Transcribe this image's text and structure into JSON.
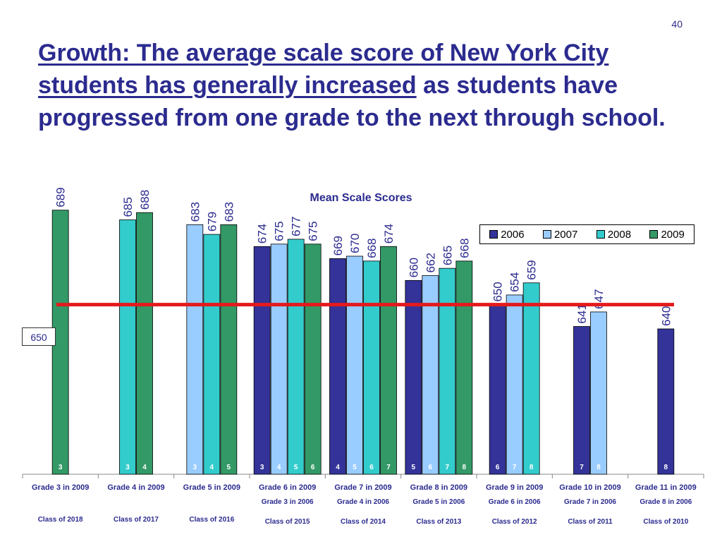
{
  "page_number": "40",
  "title": {
    "underlined": "Growth: The average scale score of New York City students has generally increased",
    "rest": " as students have progressed from one grade to the next through school."
  },
  "reference_label": "650",
  "chart_data": {
    "type": "bar",
    "title": "Mean Scale Scores",
    "ylim": [
      580,
      700
    ],
    "reference_line": 650,
    "series": [
      {
        "name": "2006",
        "color": "#333399"
      },
      {
        "name": "2007",
        "color": "#99ccff"
      },
      {
        "name": "2008",
        "color": "#33cccc"
      },
      {
        "name": "2009",
        "color": "#339966"
      }
    ],
    "categories": [
      {
        "label": "Grade 3 in 2009",
        "grade_2006": "",
        "class": "Class of 2018",
        "bars": [
          {
            "year": "2009",
            "value": 689,
            "grade": "3"
          }
        ]
      },
      {
        "label": "Grade 4 in 2009",
        "grade_2006": "",
        "class": "Class of 2017",
        "bars": [
          {
            "year": "2008",
            "value": 685,
            "grade": "3"
          },
          {
            "year": "2009",
            "value": 688,
            "grade": "4"
          }
        ]
      },
      {
        "label": "Grade 5 in 2009",
        "grade_2006": "",
        "class": "Class of 2016",
        "bars": [
          {
            "year": "2007",
            "value": 683,
            "grade": "3"
          },
          {
            "year": "2008",
            "value": 679,
            "grade": "4"
          },
          {
            "year": "2009",
            "value": 683,
            "grade": "5"
          }
        ]
      },
      {
        "label": "Grade 6 in 2009",
        "grade_2006": "Grade 3 in 2006",
        "class": "Class of 2015",
        "bars": [
          {
            "year": "2006",
            "value": 674,
            "grade": "3"
          },
          {
            "year": "2007",
            "value": 675,
            "grade": "4"
          },
          {
            "year": "2008",
            "value": 677,
            "grade": "5"
          },
          {
            "year": "2009",
            "value": 675,
            "grade": "6"
          }
        ]
      },
      {
        "label": "Grade 7 in 2009",
        "grade_2006": "Grade 4 in 2006",
        "class": "Class of 2014",
        "bars": [
          {
            "year": "2006",
            "value": 669,
            "grade": "4"
          },
          {
            "year": "2007",
            "value": 670,
            "grade": "5"
          },
          {
            "year": "2008",
            "value": 668,
            "grade": "6"
          },
          {
            "year": "2009",
            "value": 674,
            "grade": "7"
          }
        ]
      },
      {
        "label": "Grade 8 in 2009",
        "grade_2006": "Grade 5 in 2006",
        "class": "Class of 2013",
        "bars": [
          {
            "year": "2006",
            "value": 660,
            "grade": "5"
          },
          {
            "year": "2007",
            "value": 662,
            "grade": "6"
          },
          {
            "year": "2008",
            "value": 665,
            "grade": "7"
          },
          {
            "year": "2009",
            "value": 668,
            "grade": "8"
          }
        ]
      },
      {
        "label": "Grade 9 in 2009",
        "grade_2006": "Grade 6 in 2006",
        "class": "Class of 2012",
        "bars": [
          {
            "year": "2006",
            "value": 650,
            "grade": "6"
          },
          {
            "year": "2007",
            "value": 654,
            "grade": "7"
          },
          {
            "year": "2008",
            "value": 659,
            "grade": "8"
          }
        ]
      },
      {
        "label": "Grade 10 in 2009",
        "grade_2006": "Grade 7 in 2006",
        "class": "Class of 2011",
        "bars": [
          {
            "year": "2006",
            "value": 641,
            "grade": "7"
          },
          {
            "year": "2007",
            "value": 647,
            "grade": "8"
          }
        ]
      },
      {
        "label": "Grade 11 in 2009",
        "grade_2006": "Grade 8 in 2006",
        "class": "Class of 2010",
        "bars": [
          {
            "year": "2006",
            "value": 640,
            "grade": "8"
          }
        ]
      }
    ]
  }
}
